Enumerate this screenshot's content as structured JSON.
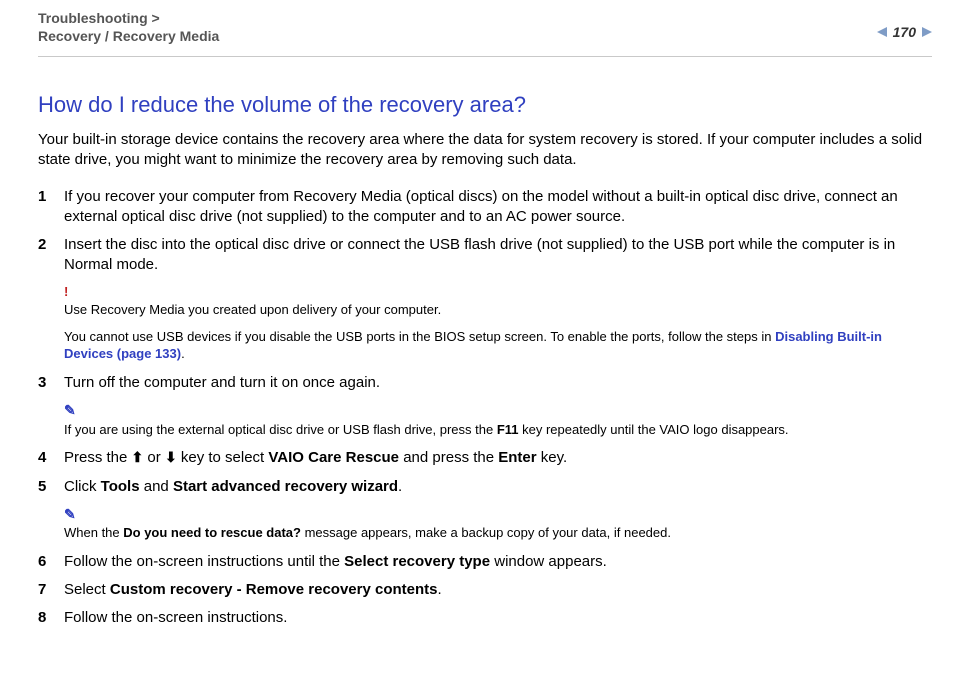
{
  "header": {
    "breadcrumb_line1": "Troubleshooting >",
    "breadcrumb_line2": "Recovery / Recovery Media",
    "page_number": "170"
  },
  "title": "How do I reduce the volume of the recovery area?",
  "intro": "Your built-in storage device contains the recovery area where the data for system recovery is stored. If your computer includes a solid state drive, you might want to minimize the recovery area by removing such data.",
  "steps": {
    "s1": {
      "num": "1",
      "text": "If you recover your computer from Recovery Media (optical discs) on the model without a built-in optical disc drive, connect an external optical disc drive (not supplied) to the computer and to an AC power source."
    },
    "s2": {
      "num": "2",
      "text": "Insert the disc into the optical disc drive or connect the USB flash drive (not supplied) to the USB port while the computer is in Normal mode."
    },
    "s3": {
      "num": "3",
      "text": "Turn off the computer and turn it on once again."
    },
    "s4": {
      "num": "4",
      "pre": "Press the ",
      "up": "⬆",
      "or": " or ",
      "down": "⬇",
      "mid": " key to select ",
      "b1": "VAIO Care Rescue",
      "mid2": " and press the ",
      "b2": "Enter",
      "post": " key."
    },
    "s5": {
      "num": "5",
      "pre": "Click ",
      "b1": "Tools",
      "mid": " and ",
      "b2": "Start advanced recovery wizard",
      "post": "."
    },
    "s6": {
      "num": "6",
      "pre": "Follow the on-screen instructions until the ",
      "b1": "Select recovery type",
      "post": " window appears."
    },
    "s7": {
      "num": "7",
      "pre": "Select ",
      "b1": "Custom recovery - Remove recovery contents",
      "post": "."
    },
    "s8": {
      "num": "8",
      "text": "Follow the on-screen instructions."
    }
  },
  "notes": {
    "warn_mark": "!",
    "pencil_mark": "✎",
    "warn1": "Use Recovery Media you created upon delivery of your computer.",
    "usb_pre": "You cannot use USB devices if you disable the USB ports in the BIOS setup screen. To enable the ports, follow the steps in ",
    "usb_link": "Disabling Built-in Devices (page 133)",
    "usb_post": ".",
    "pencil1_pre": "If you are using the external optical disc drive or USB flash drive, press the ",
    "pencil1_key": "F11",
    "pencil1_post": " key repeatedly until the VAIO logo disappears.",
    "pencil2_pre": "When the ",
    "pencil2_b": "Do you need to rescue data?",
    "pencil2_post": " message appears, make a backup copy of your data, if needed."
  },
  "colors": {
    "heading": "#3040c0",
    "warn": "#c02020",
    "triangle": "#7f9cc6",
    "rule": "#c9c9c9",
    "breadcrumb": "#555555"
  }
}
